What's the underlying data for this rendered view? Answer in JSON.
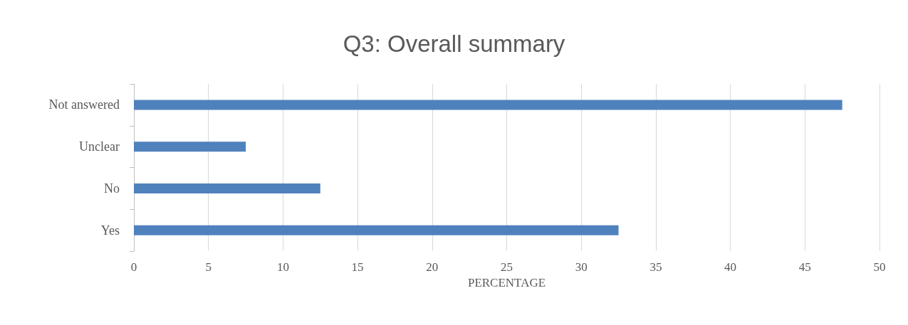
{
  "chart_data": {
    "type": "bar",
    "orientation": "horizontal",
    "title": "Q3: Overall summary",
    "xlabel": "PERCENTAGE",
    "categories": [
      "Not answered",
      "Unclear",
      "No",
      "Yes"
    ],
    "values": [
      47.5,
      7.5,
      12.5,
      32.5
    ],
    "color": "#4f81bd",
    "xlim": [
      0,
      50
    ],
    "xticks": [
      0,
      5,
      10,
      15,
      20,
      25,
      30,
      35,
      40,
      45,
      50
    ],
    "grid": "x"
  }
}
